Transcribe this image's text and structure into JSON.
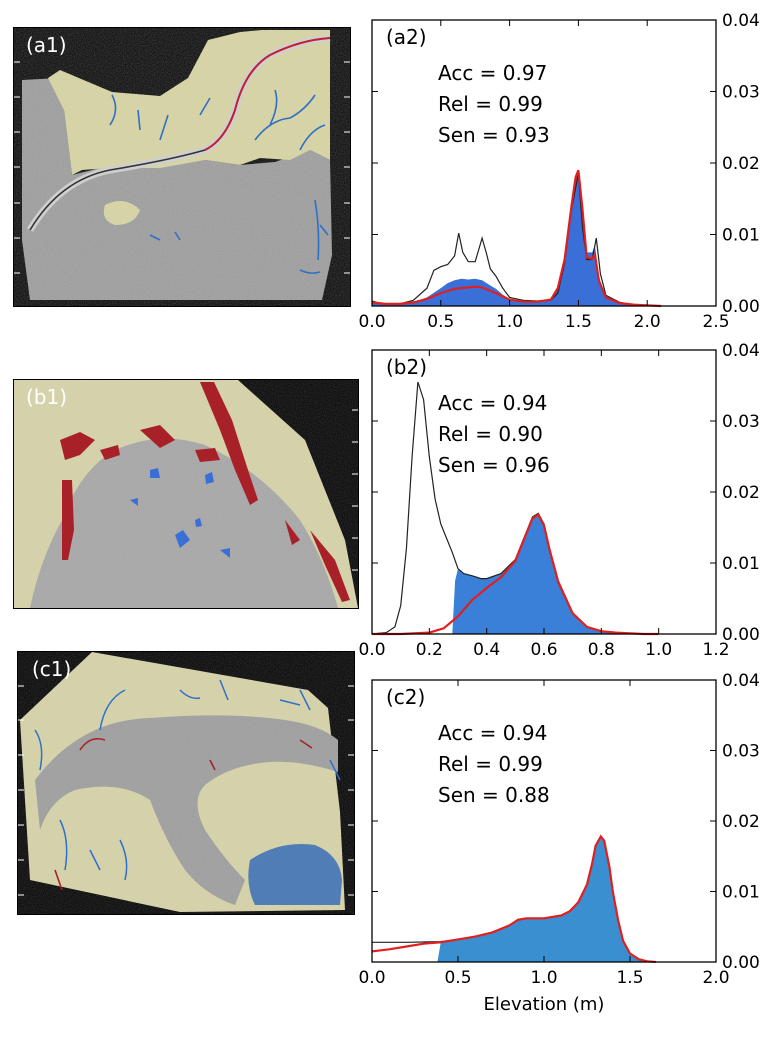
{
  "xlabel": "Elevation (m)",
  "colors": {
    "sand": "#d6d3a6",
    "blue": "#3a6fd8",
    "blue_light": "#3a8fd0",
    "red": "#e02020",
    "dark_red": "#a82028",
    "black": "#222222",
    "gray": "#9a9a9a"
  },
  "maps": [
    {
      "label": "(a1)"
    },
    {
      "label": "(b1)"
    },
    {
      "label": "(c1)"
    }
  ],
  "chart_data": [
    {
      "type": "area",
      "panel_label": "(a2)",
      "stats": [
        "Acc = 0.97",
        "Rel = 0.99",
        "Sen = 0.93"
      ],
      "xlim": [
        0.0,
        2.5
      ],
      "ylim": [
        0.0,
        0.04
      ],
      "xticks": [
        "0.0",
        "0.5",
        "1.0",
        "1.5",
        "2.0",
        "2.5"
      ],
      "yticks": [
        "0.00",
        "0.01",
        "0.02",
        "0.03",
        "0.04"
      ],
      "fill_color": "#3a6fd8",
      "series": [
        {
          "style": "filled",
          "x": [
            0.0,
            0.05,
            0.1,
            0.2,
            0.3,
            0.4,
            0.5,
            0.55,
            0.6,
            0.65,
            0.7,
            0.75,
            0.8,
            0.85,
            0.9,
            0.95,
            1.0,
            1.1,
            1.2,
            1.3,
            1.35,
            1.4,
            1.45,
            1.48,
            1.5,
            1.53,
            1.56,
            1.6,
            1.62,
            1.65,
            1.7,
            1.8,
            1.9,
            2.0,
            2.1
          ],
          "y": [
            0.0006,
            0.0004,
            0.0003,
            0.0003,
            0.0005,
            0.0012,
            0.0025,
            0.0032,
            0.0036,
            0.0038,
            0.0037,
            0.0038,
            0.0036,
            0.003,
            0.0024,
            0.0016,
            0.001,
            0.0007,
            0.0006,
            0.0009,
            0.0025,
            0.0065,
            0.014,
            0.018,
            0.0188,
            0.014,
            0.0075,
            0.0075,
            0.0085,
            0.004,
            0.0013,
            0.0005,
            0.0002,
            0.0001,
            0.0
          ]
        },
        {
          "style": "black-line",
          "x": [
            0.0,
            0.05,
            0.1,
            0.2,
            0.3,
            0.4,
            0.45,
            0.5,
            0.55,
            0.6,
            0.63,
            0.66,
            0.7,
            0.75,
            0.8,
            0.83,
            0.86,
            0.9,
            0.95,
            1.0,
            1.1,
            1.2,
            1.3,
            1.35,
            1.4,
            1.45,
            1.48,
            1.5,
            1.53,
            1.56,
            1.6,
            1.63,
            1.66,
            1.7,
            1.8,
            1.9,
            2.0,
            2.1
          ],
          "y": [
            0.0007,
            0.0004,
            0.0003,
            0.0003,
            0.0008,
            0.0025,
            0.005,
            0.0055,
            0.0058,
            0.007,
            0.0102,
            0.0075,
            0.0062,
            0.0062,
            0.0095,
            0.0075,
            0.0052,
            0.0042,
            0.0025,
            0.0012,
            0.0008,
            0.0007,
            0.0008,
            0.0018,
            0.006,
            0.0135,
            0.0165,
            0.0185,
            0.011,
            0.0065,
            0.0065,
            0.0095,
            0.0045,
            0.0015,
            0.0005,
            0.0002,
            0.0001,
            0.0
          ]
        },
        {
          "style": "red-line",
          "x": [
            0.0,
            0.05,
            0.1,
            0.2,
            0.3,
            0.4,
            0.5,
            0.6,
            0.7,
            0.75,
            0.8,
            0.9,
            1.0,
            1.1,
            1.2,
            1.3,
            1.35,
            1.4,
            1.45,
            1.48,
            1.5,
            1.53,
            1.56,
            1.6,
            1.62,
            1.65,
            1.7,
            1.8,
            1.9,
            2.0,
            2.1
          ],
          "y": [
            0.0005,
            0.0004,
            0.0003,
            0.0003,
            0.0005,
            0.001,
            0.0018,
            0.0024,
            0.0026,
            0.0027,
            0.0026,
            0.0018,
            0.0009,
            0.0006,
            0.0006,
            0.0009,
            0.0025,
            0.0065,
            0.014,
            0.018,
            0.019,
            0.0135,
            0.0068,
            0.0066,
            0.0072,
            0.0035,
            0.0012,
            0.0004,
            0.0002,
            0.0001,
            0.0
          ]
        }
      ]
    },
    {
      "type": "area",
      "panel_label": "(b2)",
      "stats": [
        "Acc = 0.94",
        "Rel = 0.90",
        "Sen = 0.96"
      ],
      "xlim": [
        0.0,
        1.2
      ],
      "ylim": [
        0.0,
        0.04
      ],
      "xticks": [
        "0.0",
        "0.2",
        "0.4",
        "0.6",
        "0.8",
        "1.0",
        "1.2"
      ],
      "yticks": [
        "0.00",
        "0.01",
        "0.02",
        "0.03",
        "0.04"
      ],
      "fill_color": "#3a7fd8",
      "series": [
        {
          "style": "filled",
          "x": [
            0.28,
            0.29,
            0.3,
            0.32,
            0.35,
            0.38,
            0.4,
            0.45,
            0.5,
            0.53,
            0.56,
            0.58,
            0.6,
            0.62,
            0.65,
            0.7,
            0.75,
            0.8,
            0.85,
            0.9,
            0.95,
            1.0
          ],
          "y": [
            0.0,
            0.0075,
            0.0092,
            0.0085,
            0.0082,
            0.0078,
            0.0078,
            0.0085,
            0.0105,
            0.0135,
            0.0165,
            0.017,
            0.0155,
            0.012,
            0.0075,
            0.003,
            0.001,
            0.0004,
            0.0002,
            0.0001,
            0.0,
            0.0
          ]
        },
        {
          "style": "black-line",
          "x": [
            0.0,
            0.05,
            0.08,
            0.1,
            0.12,
            0.14,
            0.16,
            0.18,
            0.2,
            0.22,
            0.24,
            0.26,
            0.28,
            0.3,
            0.32,
            0.35,
            0.38,
            0.4,
            0.45,
            0.5,
            0.53,
            0.56,
            0.58,
            0.6,
            0.62,
            0.65,
            0.7,
            0.75,
            0.8,
            0.85,
            0.9,
            0.95,
            1.0
          ],
          "y": [
            0.0,
            0.0002,
            0.001,
            0.004,
            0.012,
            0.025,
            0.0355,
            0.033,
            0.025,
            0.019,
            0.0155,
            0.0135,
            0.0115,
            0.0092,
            0.0085,
            0.0082,
            0.0078,
            0.0078,
            0.0085,
            0.0105,
            0.0135,
            0.0165,
            0.017,
            0.0155,
            0.012,
            0.0075,
            0.003,
            0.001,
            0.0004,
            0.0002,
            0.0001,
            0.0,
            0.0
          ]
        },
        {
          "style": "red-line",
          "x": [
            0.0,
            0.1,
            0.2,
            0.25,
            0.3,
            0.35,
            0.4,
            0.45,
            0.5,
            0.53,
            0.56,
            0.58,
            0.6,
            0.62,
            0.65,
            0.7,
            0.75,
            0.8,
            0.85,
            0.9,
            0.95,
            1.0
          ],
          "y": [
            0.0,
            0.0,
            0.0002,
            0.0008,
            0.0025,
            0.0048,
            0.0065,
            0.008,
            0.0103,
            0.0133,
            0.0163,
            0.0168,
            0.0153,
            0.0118,
            0.0073,
            0.0029,
            0.001,
            0.0004,
            0.0002,
            0.0001,
            0.0,
            0.0
          ]
        }
      ]
    },
    {
      "type": "area",
      "panel_label": "(c2)",
      "stats": [
        "Acc = 0.94",
        "Rel = 0.99",
        "Sen = 0.88"
      ],
      "xlim": [
        0.0,
        2.0
      ],
      "ylim": [
        0.0,
        0.04
      ],
      "xticks": [
        "0.0",
        "0.5",
        "1.0",
        "1.5",
        "2.0"
      ],
      "yticks": [
        "0.00",
        "0.01",
        "0.02",
        "0.03",
        "0.04"
      ],
      "fill_color": "#3a8fd0",
      "series": [
        {
          "style": "filled",
          "x": [
            0.38,
            0.4,
            0.5,
            0.6,
            0.7,
            0.8,
            0.85,
            0.9,
            1.0,
            1.1,
            1.15,
            1.2,
            1.25,
            1.28,
            1.3,
            1.33,
            1.35,
            1.38,
            1.4,
            1.43,
            1.46,
            1.5,
            1.55,
            1.6,
            1.65
          ],
          "y": [
            0.0,
            0.0028,
            0.0032,
            0.0036,
            0.0042,
            0.0052,
            0.006,
            0.0062,
            0.0062,
            0.0066,
            0.0072,
            0.0085,
            0.011,
            0.014,
            0.0165,
            0.0178,
            0.0172,
            0.0135,
            0.01,
            0.006,
            0.003,
            0.0012,
            0.0004,
            0.0001,
            0.0
          ]
        },
        {
          "style": "black-line",
          "x": [
            0.0,
            0.2,
            0.4,
            0.5,
            0.6,
            0.7,
            0.8,
            0.85,
            0.9,
            1.0,
            1.1,
            1.15,
            1.2,
            1.25,
            1.28,
            1.3,
            1.33,
            1.35,
            1.38,
            1.4,
            1.43,
            1.46,
            1.5,
            1.55,
            1.6,
            1.65
          ],
          "y": [
            0.0028,
            0.0028,
            0.0029,
            0.0032,
            0.0036,
            0.0042,
            0.0052,
            0.006,
            0.0062,
            0.0062,
            0.0066,
            0.0072,
            0.0085,
            0.011,
            0.014,
            0.0165,
            0.0178,
            0.0172,
            0.0135,
            0.01,
            0.006,
            0.003,
            0.0012,
            0.0004,
            0.0001,
            0.0
          ]
        },
        {
          "style": "red-line",
          "x": [
            0.0,
            0.1,
            0.2,
            0.3,
            0.4,
            0.5,
            0.6,
            0.7,
            0.8,
            0.85,
            0.9,
            1.0,
            1.1,
            1.15,
            1.2,
            1.25,
            1.28,
            1.3,
            1.33,
            1.35,
            1.38,
            1.4,
            1.43,
            1.46,
            1.5,
            1.55,
            1.6,
            1.65
          ],
          "y": [
            0.0015,
            0.0018,
            0.0022,
            0.0026,
            0.0028,
            0.0032,
            0.0036,
            0.0042,
            0.0052,
            0.006,
            0.0062,
            0.0062,
            0.0066,
            0.0072,
            0.0085,
            0.011,
            0.014,
            0.0165,
            0.0178,
            0.0172,
            0.0135,
            0.01,
            0.006,
            0.003,
            0.0012,
            0.0004,
            0.0001,
            0.0
          ]
        }
      ]
    }
  ]
}
